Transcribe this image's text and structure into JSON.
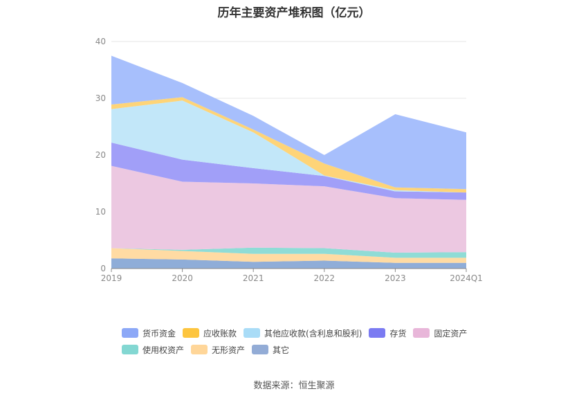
{
  "chart_data": {
    "type": "area",
    "stacked": true,
    "title": "历年主要资产堆积图（亿元）",
    "x": [
      "2019",
      "2020",
      "2021",
      "2022",
      "2023",
      "2024Q1"
    ],
    "ylim": [
      0,
      40
    ],
    "yticks": [
      "0",
      "10",
      "20",
      "30",
      "40"
    ],
    "grid": true,
    "legend_position": "bottom",
    "series": [
      {
        "name": "其它",
        "color": "#8fadd8",
        "values": [
          1.8,
          1.6,
          1.2,
          1.4,
          1.0,
          1.0
        ]
      },
      {
        "name": "无形资产",
        "color": "#ffdba3",
        "values": [
          1.8,
          1.5,
          1.4,
          1.2,
          0.9,
          0.9
        ]
      },
      {
        "name": "使用权资产",
        "color": "#8fdcd6",
        "values": [
          0.0,
          0.2,
          1.1,
          1.0,
          0.9,
          1.0
        ]
      },
      {
        "name": "固定资产",
        "color": "#ecc8e1",
        "values": [
          14.5,
          12.0,
          11.3,
          10.9,
          9.6,
          9.2
        ]
      },
      {
        "name": "存货",
        "color": "#a19ff8",
        "values": [
          4.1,
          3.9,
          2.7,
          1.8,
          1.2,
          1.3
        ]
      },
      {
        "name": "其他应收款(含利息和股利)",
        "color": "#c2e7f9",
        "values": [
          5.9,
          10.4,
          6.3,
          0.1,
          0.2,
          0.0
        ]
      },
      {
        "name": "应收账款",
        "color": "#fed478",
        "values": [
          0.8,
          0.6,
          0.5,
          2.1,
          0.5,
          0.6
        ]
      },
      {
        "name": "货币资金",
        "color": "#a7bffc",
        "values": [
          8.6,
          2.5,
          2.4,
          1.5,
          12.9,
          10.0
        ]
      }
    ]
  },
  "legend": [
    {
      "label": "货币资金",
      "color": "#8ca8f7"
    },
    {
      "label": "应收账款",
      "color": "#fdc53f"
    },
    {
      "label": "其他应收款(含利息和股利)",
      "color": "#a9dcf7"
    },
    {
      "label": "存货",
      "color": "#7b7bf2"
    },
    {
      "label": "固定资产",
      "color": "#e8b6d9"
    },
    {
      "label": "使用权资产",
      "color": "#83d7d2"
    },
    {
      "label": "无形资产",
      "color": "#ffd699"
    },
    {
      "label": "其它",
      "color": "#93acd6"
    }
  ],
  "source": "数据来源：恒生聚源"
}
